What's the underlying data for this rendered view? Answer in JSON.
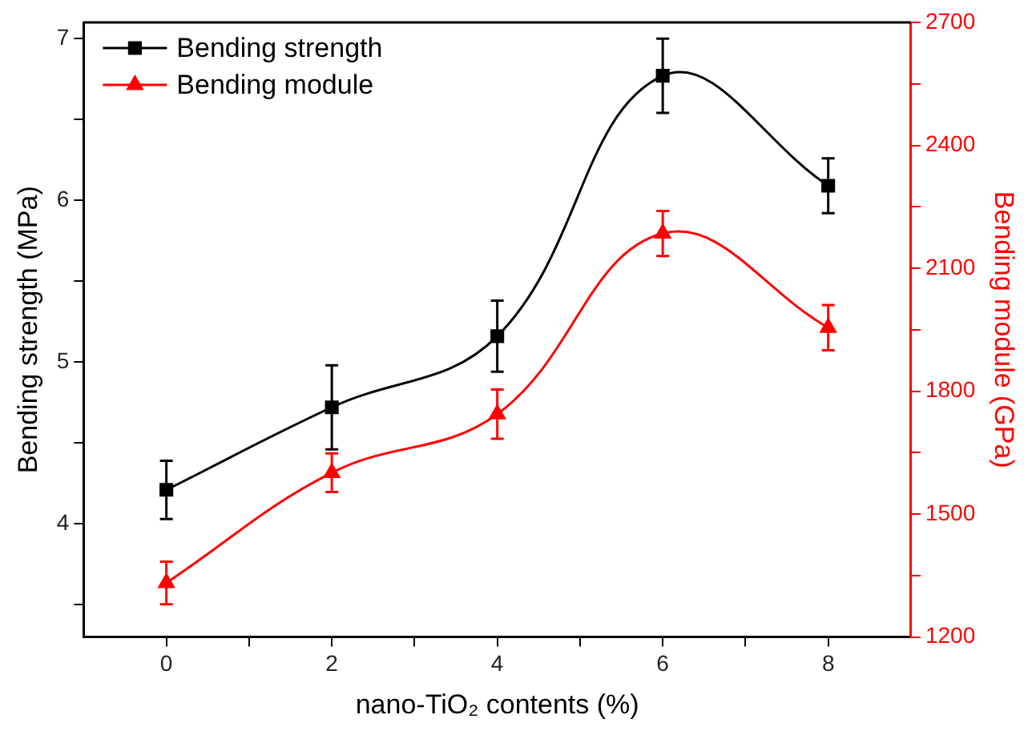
{
  "chart_data": {
    "type": "line",
    "xlabel": "nano-TiO₂ contents (%)",
    "ylabel": "Bending strength (MPa)",
    "y2label": "Bending module (GPa)",
    "x": [
      0,
      2,
      4,
      6,
      8
    ],
    "xlim": [
      -1,
      9
    ],
    "xticks": [
      0,
      {
        "value": 1,
        "label": null
      },
      2,
      {
        "value": 3,
        "label": null
      },
      4,
      {
        "value": 5,
        "label": null
      },
      6,
      {
        "value": 7,
        "label": null
      },
      8
    ],
    "ylim": [
      3.3,
      7.1
    ],
    "yticks": [
      {
        "value": 3.5,
        "label": null
      },
      4,
      {
        "value": 4.5,
        "label": null
      },
      5,
      {
        "value": 5.5,
        "label": null
      },
      6,
      {
        "value": 6.5,
        "label": null
      },
      7
    ],
    "y2lim": [
      1200,
      2700
    ],
    "y2ticks": [
      1200,
      {
        "value": 1350,
        "label": null
      },
      1500,
      {
        "value": 1650,
        "label": null
      },
      1800,
      {
        "value": 1950,
        "label": null
      },
      2100,
      {
        "value": 2250,
        "label": null
      },
      2400,
      {
        "value": 2550,
        "label": null
      },
      2700
    ],
    "series": [
      {
        "name": "Bending strength",
        "color": "#000000",
        "marker": "square",
        "values": [
          4.21,
          4.72,
          5.16,
          6.77,
          6.09
        ],
        "errors": [
          0.18,
          0.26,
          0.22,
          0.23,
          0.17
        ]
      },
      {
        "name": "Bending module",
        "color": "#ff0000",
        "marker": "triangle",
        "axis": "y2",
        "values": [
          1332,
          1601,
          1744,
          2185,
          1955
        ],
        "errors": [
          52,
          47,
          60,
          55,
          55
        ]
      }
    ],
    "legend": "top left",
    "grid": false
  }
}
